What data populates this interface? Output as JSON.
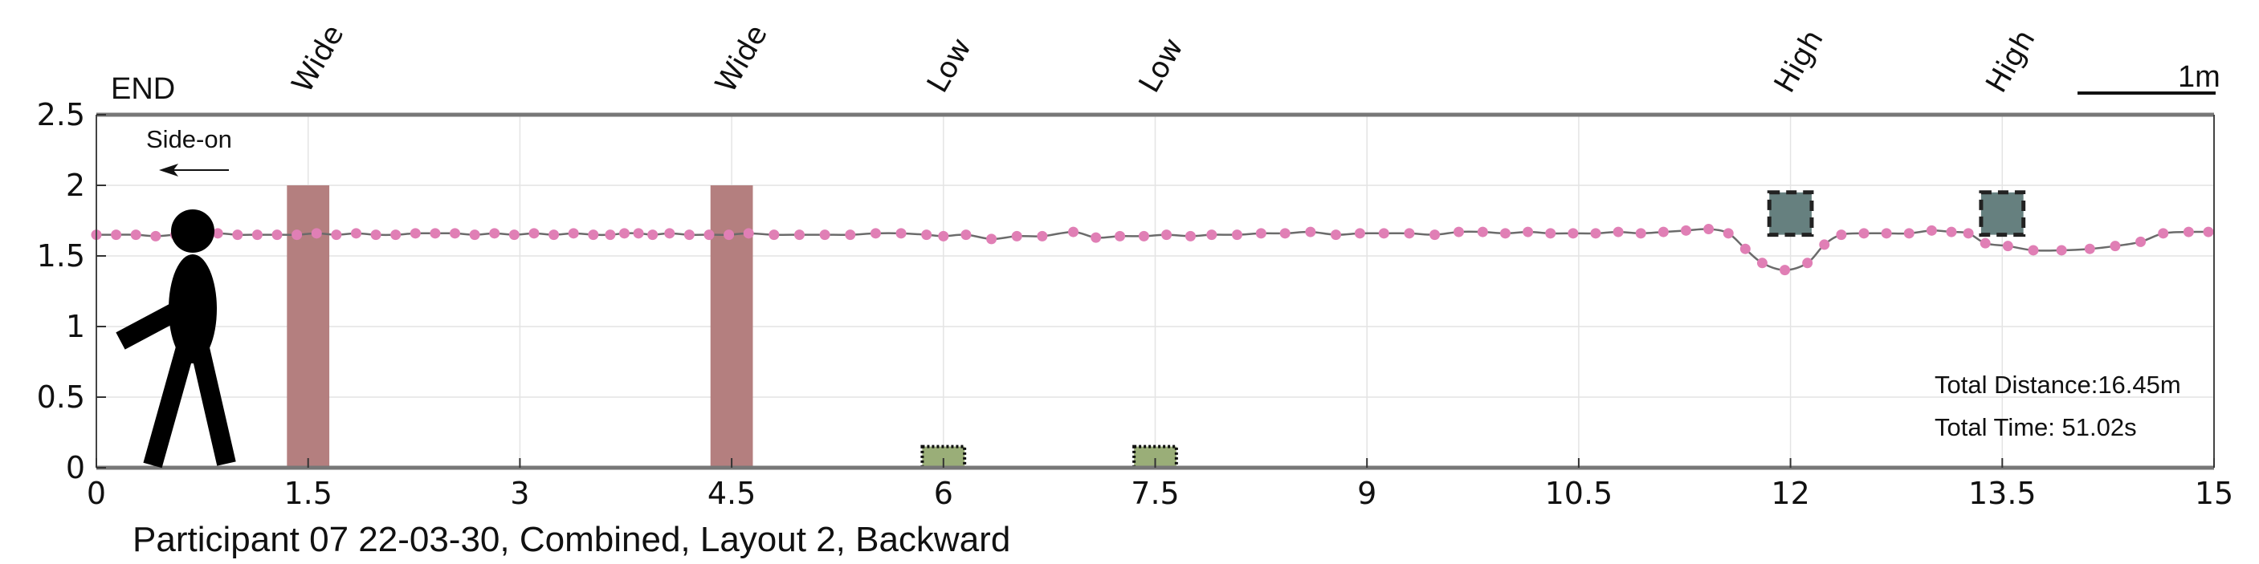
{
  "chart_data": {
    "type": "line",
    "title": "Participant 07 22-03-30, Combined, Layout 2, Backward",
    "end_label": "END",
    "direction_label": "Side-on",
    "scale_label": "1m",
    "xlim": [
      0,
      15
    ],
    "ylim": [
      0,
      2.5
    ],
    "x_ticks": [
      "0",
      "1.5",
      "3",
      "4.5",
      "6",
      "7.5",
      "9",
      "10.5",
      "12",
      "13.5",
      "15"
    ],
    "y_ticks": [
      "0",
      "0.5",
      "1",
      "1.5",
      "2",
      "2.5"
    ],
    "grid": true,
    "annotations": {
      "distance": "Total Distance:16.45m",
      "time": "Total Time: 51.02s"
    },
    "obstacles": [
      {
        "label": "Wide",
        "type": "wide",
        "x0": 1.35,
        "x1": 1.65,
        "y0": 0,
        "y1": 2.0,
        "color": "#b47f7f"
      },
      {
        "label": "Wide",
        "type": "wide",
        "x0": 4.35,
        "x1": 4.65,
        "y0": 0,
        "y1": 2.0,
        "color": "#b47f7f"
      },
      {
        "label": "Low",
        "type": "low",
        "x0": 5.85,
        "x1": 6.15,
        "y0": 0,
        "y1": 0.15,
        "color": "#9aae78"
      },
      {
        "label": "Low",
        "type": "low",
        "x0": 7.35,
        "x1": 7.65,
        "y0": 0,
        "y1": 0.15,
        "color": "#9aae78"
      },
      {
        "label": "High",
        "type": "high",
        "x0": 11.85,
        "x1": 12.15,
        "y0": 1.65,
        "y1": 1.95,
        "color": "#66807f"
      },
      {
        "label": "High",
        "type": "high",
        "x0": 13.35,
        "x1": 13.65,
        "y0": 1.65,
        "y1": 1.95,
        "color": "#66807f"
      }
    ],
    "series": [
      {
        "color": "#e07fb5",
        "x": [
          0,
          0.14,
          0.28,
          0.42,
          0.56,
          0.7,
          0.86,
          1.0,
          1.14,
          1.28,
          1.42,
          1.56,
          1.7,
          1.84,
          1.98,
          2.12,
          2.26,
          2.4,
          2.54,
          2.68,
          2.82,
          2.96,
          3.1,
          3.24,
          3.38,
          3.52,
          3.64,
          3.74,
          3.84,
          3.94,
          4.06,
          4.2,
          4.34,
          4.48,
          4.62,
          4.8,
          4.98,
          5.16,
          5.34,
          5.52,
          5.7,
          5.88,
          6.0,
          6.16,
          6.34,
          6.52,
          6.7,
          6.92,
          7.08,
          7.25,
          7.42,
          7.58,
          7.75,
          7.9,
          8.08,
          8.25,
          8.42,
          8.6,
          8.78,
          8.95,
          9.12,
          9.3,
          9.48,
          9.65,
          9.82,
          9.98,
          10.14,
          10.3,
          10.46,
          10.62,
          10.78,
          10.94,
          11.1,
          11.26,
          11.42,
          11.56,
          11.68,
          11.8,
          11.96,
          12.12,
          12.24,
          12.36,
          12.52,
          12.68,
          12.84,
          13.0,
          13.14,
          13.26,
          13.38,
          13.54,
          13.72,
          13.92,
          14.12,
          14.3,
          14.48,
          14.64,
          14.82,
          14.96
        ],
        "y": [
          1.65,
          1.65,
          1.65,
          1.64,
          1.65,
          1.65,
          1.66,
          1.65,
          1.65,
          1.65,
          1.65,
          1.66,
          1.65,
          1.66,
          1.65,
          1.65,
          1.66,
          1.66,
          1.66,
          1.65,
          1.66,
          1.65,
          1.66,
          1.65,
          1.66,
          1.65,
          1.65,
          1.66,
          1.66,
          1.65,
          1.66,
          1.65,
          1.65,
          1.65,
          1.66,
          1.65,
          1.65,
          1.65,
          1.65,
          1.66,
          1.66,
          1.65,
          1.64,
          1.65,
          1.62,
          1.64,
          1.64,
          1.67,
          1.63,
          1.64,
          1.64,
          1.65,
          1.64,
          1.65,
          1.65,
          1.66,
          1.66,
          1.67,
          1.65,
          1.66,
          1.66,
          1.66,
          1.65,
          1.67,
          1.67,
          1.66,
          1.67,
          1.66,
          1.66,
          1.66,
          1.67,
          1.66,
          1.67,
          1.68,
          1.69,
          1.66,
          1.55,
          1.45,
          1.4,
          1.45,
          1.58,
          1.65,
          1.66,
          1.66,
          1.66,
          1.68,
          1.67,
          1.66,
          1.59,
          1.57,
          1.54,
          1.54,
          1.55,
          1.57,
          1.6,
          1.66,
          1.67,
          1.67
        ]
      }
    ]
  }
}
